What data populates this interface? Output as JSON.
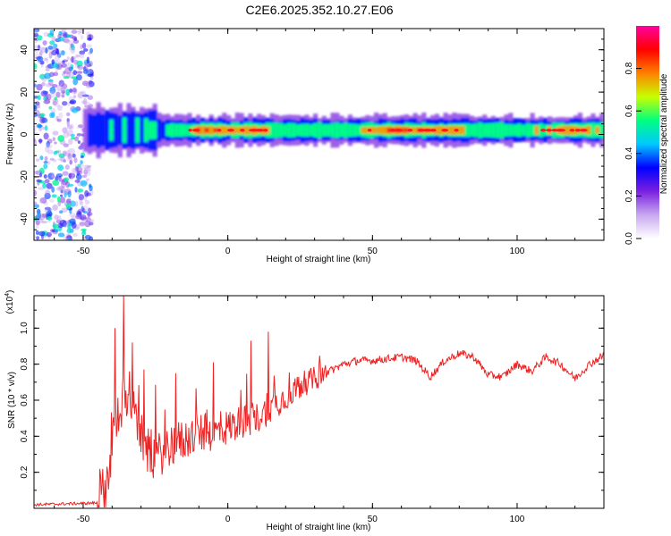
{
  "title": "C2E6.2025.352.10.27.E06",
  "chart_data": [
    {
      "type": "heatmap",
      "name": "spectrogram",
      "xlabel": "Height of straight line (km)",
      "ylabel": "Frequency (Hz)",
      "xlim": [
        -67,
        130
      ],
      "ylim": [
        -50,
        50
      ],
      "xticks": [
        -50,
        0,
        50,
        100
      ],
      "yticks": [
        -40,
        -20,
        0,
        20,
        40
      ],
      "colorbar": {
        "label": "Normalized spectral amplitude",
        "range": [
          0.0,
          1.0
        ],
        "ticks": [
          0.0,
          0.2,
          0.4,
          0.6,
          0.8
        ],
        "tick_labels": [
          "0.0",
          "0.2",
          "0.4",
          "0.6",
          "0.8"
        ],
        "colors": [
          "#ffffff",
          "#c8a8f0",
          "#7a20e0",
          "#0000ff",
          "#00c8ff",
          "#00ff80",
          "#c8ff00",
          "#ff8000",
          "#ff0000",
          "#ff00a0"
        ]
      },
      "band": {
        "center_hz": 2,
        "profile_x": [
          -50,
          -45,
          -40,
          -35,
          -30,
          -25,
          -20,
          -10,
          0,
          10,
          20,
          40,
          60,
          80,
          90,
          100,
          120,
          130
        ],
        "profile_amp": [
          0.3,
          0.45,
          0.5,
          0.45,
          0.5,
          0.5,
          0.55,
          0.85,
          0.75,
          0.8,
          0.6,
          0.65,
          0.85,
          0.75,
          0.6,
          0.6,
          0.85,
          0.6
        ]
      },
      "noise_region_km": [
        -67,
        -50
      ]
    },
    {
      "type": "line",
      "name": "snr",
      "xlabel": "Height of straight line (km)",
      "ylabel": "SNR (10 * v/v)",
      "y_multiplier": "(x10",
      "y_multiplier_exp": "4",
      "y_multiplier_close": ")",
      "xlim": [
        -67,
        130
      ],
      "ylim": [
        0,
        1.18
      ],
      "xticks": [
        -50,
        0,
        50,
        100
      ],
      "yticks": [
        0.2,
        0.4,
        0.6,
        0.8,
        1.0
      ],
      "ytick_labels": [
        "0.2",
        "0.4",
        "0.6",
        "0.8",
        "1.0"
      ],
      "color": "#ee2222",
      "key_points": {
        "x": [
          -67,
          -45,
          -42,
          -40,
          -38,
          -36,
          -34,
          -33,
          -30,
          -28,
          -25,
          -20,
          -15,
          -10,
          -5,
          0,
          5,
          10,
          15,
          20,
          25,
          30,
          35,
          40,
          45,
          50,
          55,
          60,
          65,
          70,
          75,
          80,
          85,
          90,
          95,
          100,
          105,
          110,
          115,
          120,
          125,
          130
        ],
        "y": [
          0.02,
          0.03,
          0.12,
          0.35,
          0.55,
          0.6,
          0.65,
          0.55,
          0.4,
          0.32,
          0.28,
          0.35,
          0.38,
          0.42,
          0.42,
          0.45,
          0.48,
          0.5,
          0.56,
          0.62,
          0.68,
          0.72,
          0.76,
          0.8,
          0.82,
          0.82,
          0.83,
          0.84,
          0.82,
          0.73,
          0.82,
          0.86,
          0.84,
          0.74,
          0.73,
          0.8,
          0.76,
          0.84,
          0.8,
          0.72,
          0.8,
          0.85
        ]
      },
      "peaks": [
        {
          "x": -39,
          "y": 1.0
        },
        {
          "x": -36,
          "y": 1.18
        },
        {
          "x": -33,
          "y": 0.92
        },
        {
          "x": -18,
          "y": 0.75
        },
        {
          "x": 14,
          "y": 0.98
        },
        {
          "x": 8,
          "y": 0.93
        },
        {
          "x": -5,
          "y": 0.81
        }
      ]
    }
  ]
}
